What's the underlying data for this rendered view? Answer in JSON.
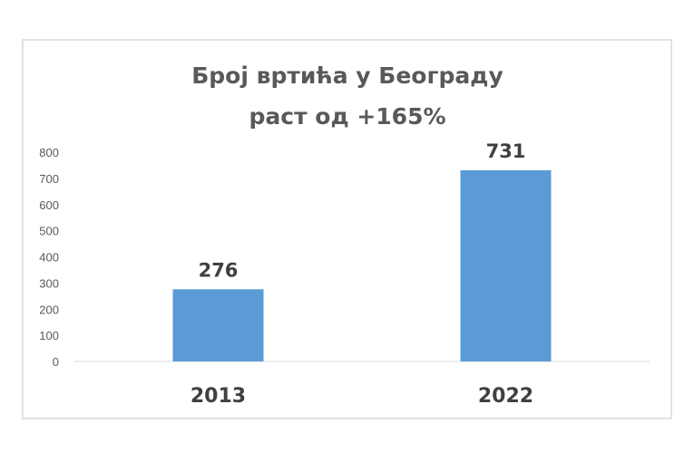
{
  "chart_data": {
    "type": "bar",
    "title": [
      "Број вртића у Београду",
      "раст од +165%"
    ],
    "categories": [
      "2013",
      "2022"
    ],
    "values": [
      276,
      731
    ],
    "data_labels": [
      "276",
      "731"
    ],
    "xlabel": "",
    "ylabel": "",
    "ylim": [
      0,
      800
    ],
    "yticks": [
      "0",
      "100",
      "200",
      "300",
      "400",
      "500",
      "600",
      "700",
      "800"
    ],
    "grid": false,
    "legend": "none",
    "bar_color": "#5b9bd5"
  }
}
